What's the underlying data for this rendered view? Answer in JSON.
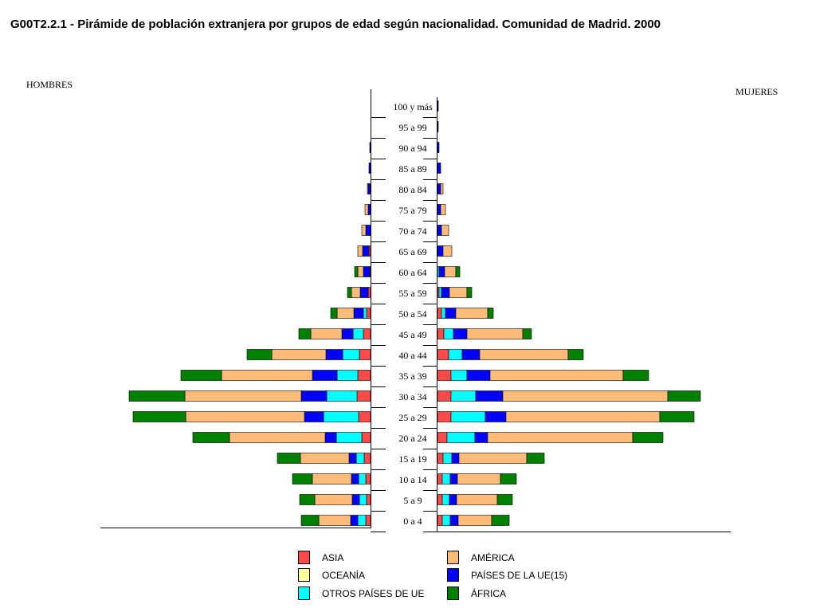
{
  "chart_data": {
    "type": "bar",
    "title": "G00T2.2.1 - Pirámide de población extranjera por grupos de edad según nacionalidad. Comunidad de Madrid. 2000",
    "left_label": "HOMBRES",
    "right_label": "MUJERES",
    "categories": [
      "100 y más",
      "95 a 99",
      "90 a 94",
      "85 a 89",
      "80 a 84",
      "75 a 79",
      "70 a 74",
      "65 a 69",
      "60 a 64",
      "55 a 59",
      "50 a 54",
      "45 a 49",
      "40 a  44",
      "35 a 39",
      "30 a 34",
      "25 a 29",
      "20 a 24",
      "15 a 19",
      "10 a 14",
      "5 a 9",
      "0 a 4"
    ],
    "series": [
      {
        "name": "ASIA",
        "color": "#ff4a4a",
        "hombres": [
          0,
          0,
          0,
          0,
          0,
          0,
          0,
          2,
          1,
          3,
          5,
          9,
          14,
          16,
          17,
          15,
          11,
          8,
          6,
          5,
          6
        ],
        "mujeres": [
          0,
          0,
          0,
          0,
          0,
          0,
          0,
          0,
          0,
          2,
          5,
          8,
          14,
          17,
          17,
          17,
          12,
          7,
          6,
          6,
          6
        ]
      },
      {
        "name": "OCEANÍA",
        "color": "#ffff99",
        "hombres": [
          0,
          0,
          0,
          0,
          0,
          0,
          0,
          0,
          0,
          0,
          0,
          0,
          0,
          0,
          0,
          0,
          0,
          0,
          0,
          0,
          0
        ],
        "mujeres": [
          0,
          0,
          0,
          0,
          0,
          0,
          0,
          0,
          0,
          0,
          0,
          0,
          0,
          0,
          0,
          0,
          0,
          0,
          0,
          0,
          0
        ]
      },
      {
        "name": "OTROS PAÍSES DE UE",
        "color": "#00ffff",
        "hombres": [
          0,
          0,
          0,
          0,
          0,
          0,
          0,
          0,
          0,
          0,
          4,
          13,
          21,
          26,
          38,
          44,
          32,
          10,
          9,
          9,
          10
        ],
        "mujeres": [
          0,
          0,
          0,
          0,
          0,
          0,
          0,
          0,
          2,
          3,
          5,
          12,
          17,
          20,
          31,
          43,
          35,
          11,
          10,
          9,
          10
        ]
      },
      {
        "name": "PAÍSES DE LA UE(15)",
        "color": "#0000ff",
        "hombres": [
          0,
          0,
          1,
          2,
          3,
          3,
          6,
          8,
          8,
          10,
          12,
          14,
          21,
          31,
          32,
          24,
          14,
          9,
          9,
          9,
          9
        ],
        "mujeres": [
          1,
          1,
          2,
          4,
          4,
          4,
          5,
          7,
          7,
          10,
          13,
          17,
          22,
          29,
          34,
          26,
          16,
          9,
          9,
          9,
          10
        ]
      },
      {
        "name": "AMÉRICA",
        "color": "#ffbb77",
        "hombres": [
          0,
          0,
          0,
          0,
          1,
          4,
          5,
          6,
          7,
          11,
          21,
          39,
          68,
          114,
          146,
          149,
          120,
          61,
          49,
          47,
          40
        ],
        "mujeres": [
          0,
          0,
          0,
          0,
          3,
          6,
          9,
          11,
          14,
          22,
          40,
          70,
          111,
          167,
          207,
          193,
          182,
          85,
          54,
          51,
          42
        ]
      },
      {
        "name": "ÁFRICA",
        "color": "#008000",
        "hombres": [
          0,
          0,
          0,
          0,
          0,
          0,
          0,
          0,
          4,
          5,
          8,
          15,
          31,
          51,
          70,
          66,
          46,
          29,
          25,
          19,
          22
        ],
        "mujeres": [
          0,
          0,
          0,
          0,
          0,
          0,
          0,
          0,
          5,
          6,
          7,
          11,
          19,
          32,
          41,
          43,
          38,
          22,
          20,
          19,
          22
        ]
      }
    ]
  },
  "legend": {
    "items": [
      {
        "label": "ASIA",
        "color": "#ff4a4a"
      },
      {
        "label": "OCEANÍA",
        "color": "#ffff99"
      },
      {
        "label": "OTROS PAÍSES DE UE",
        "color": "#00ffff"
      },
      {
        "label": "AMÉRICA",
        "color": "#ffbb77"
      },
      {
        "label": "PAÍSES DE LA UE(15)",
        "color": "#0000ff"
      },
      {
        "label": "ÁFRICA",
        "color": "#008000"
      }
    ]
  }
}
